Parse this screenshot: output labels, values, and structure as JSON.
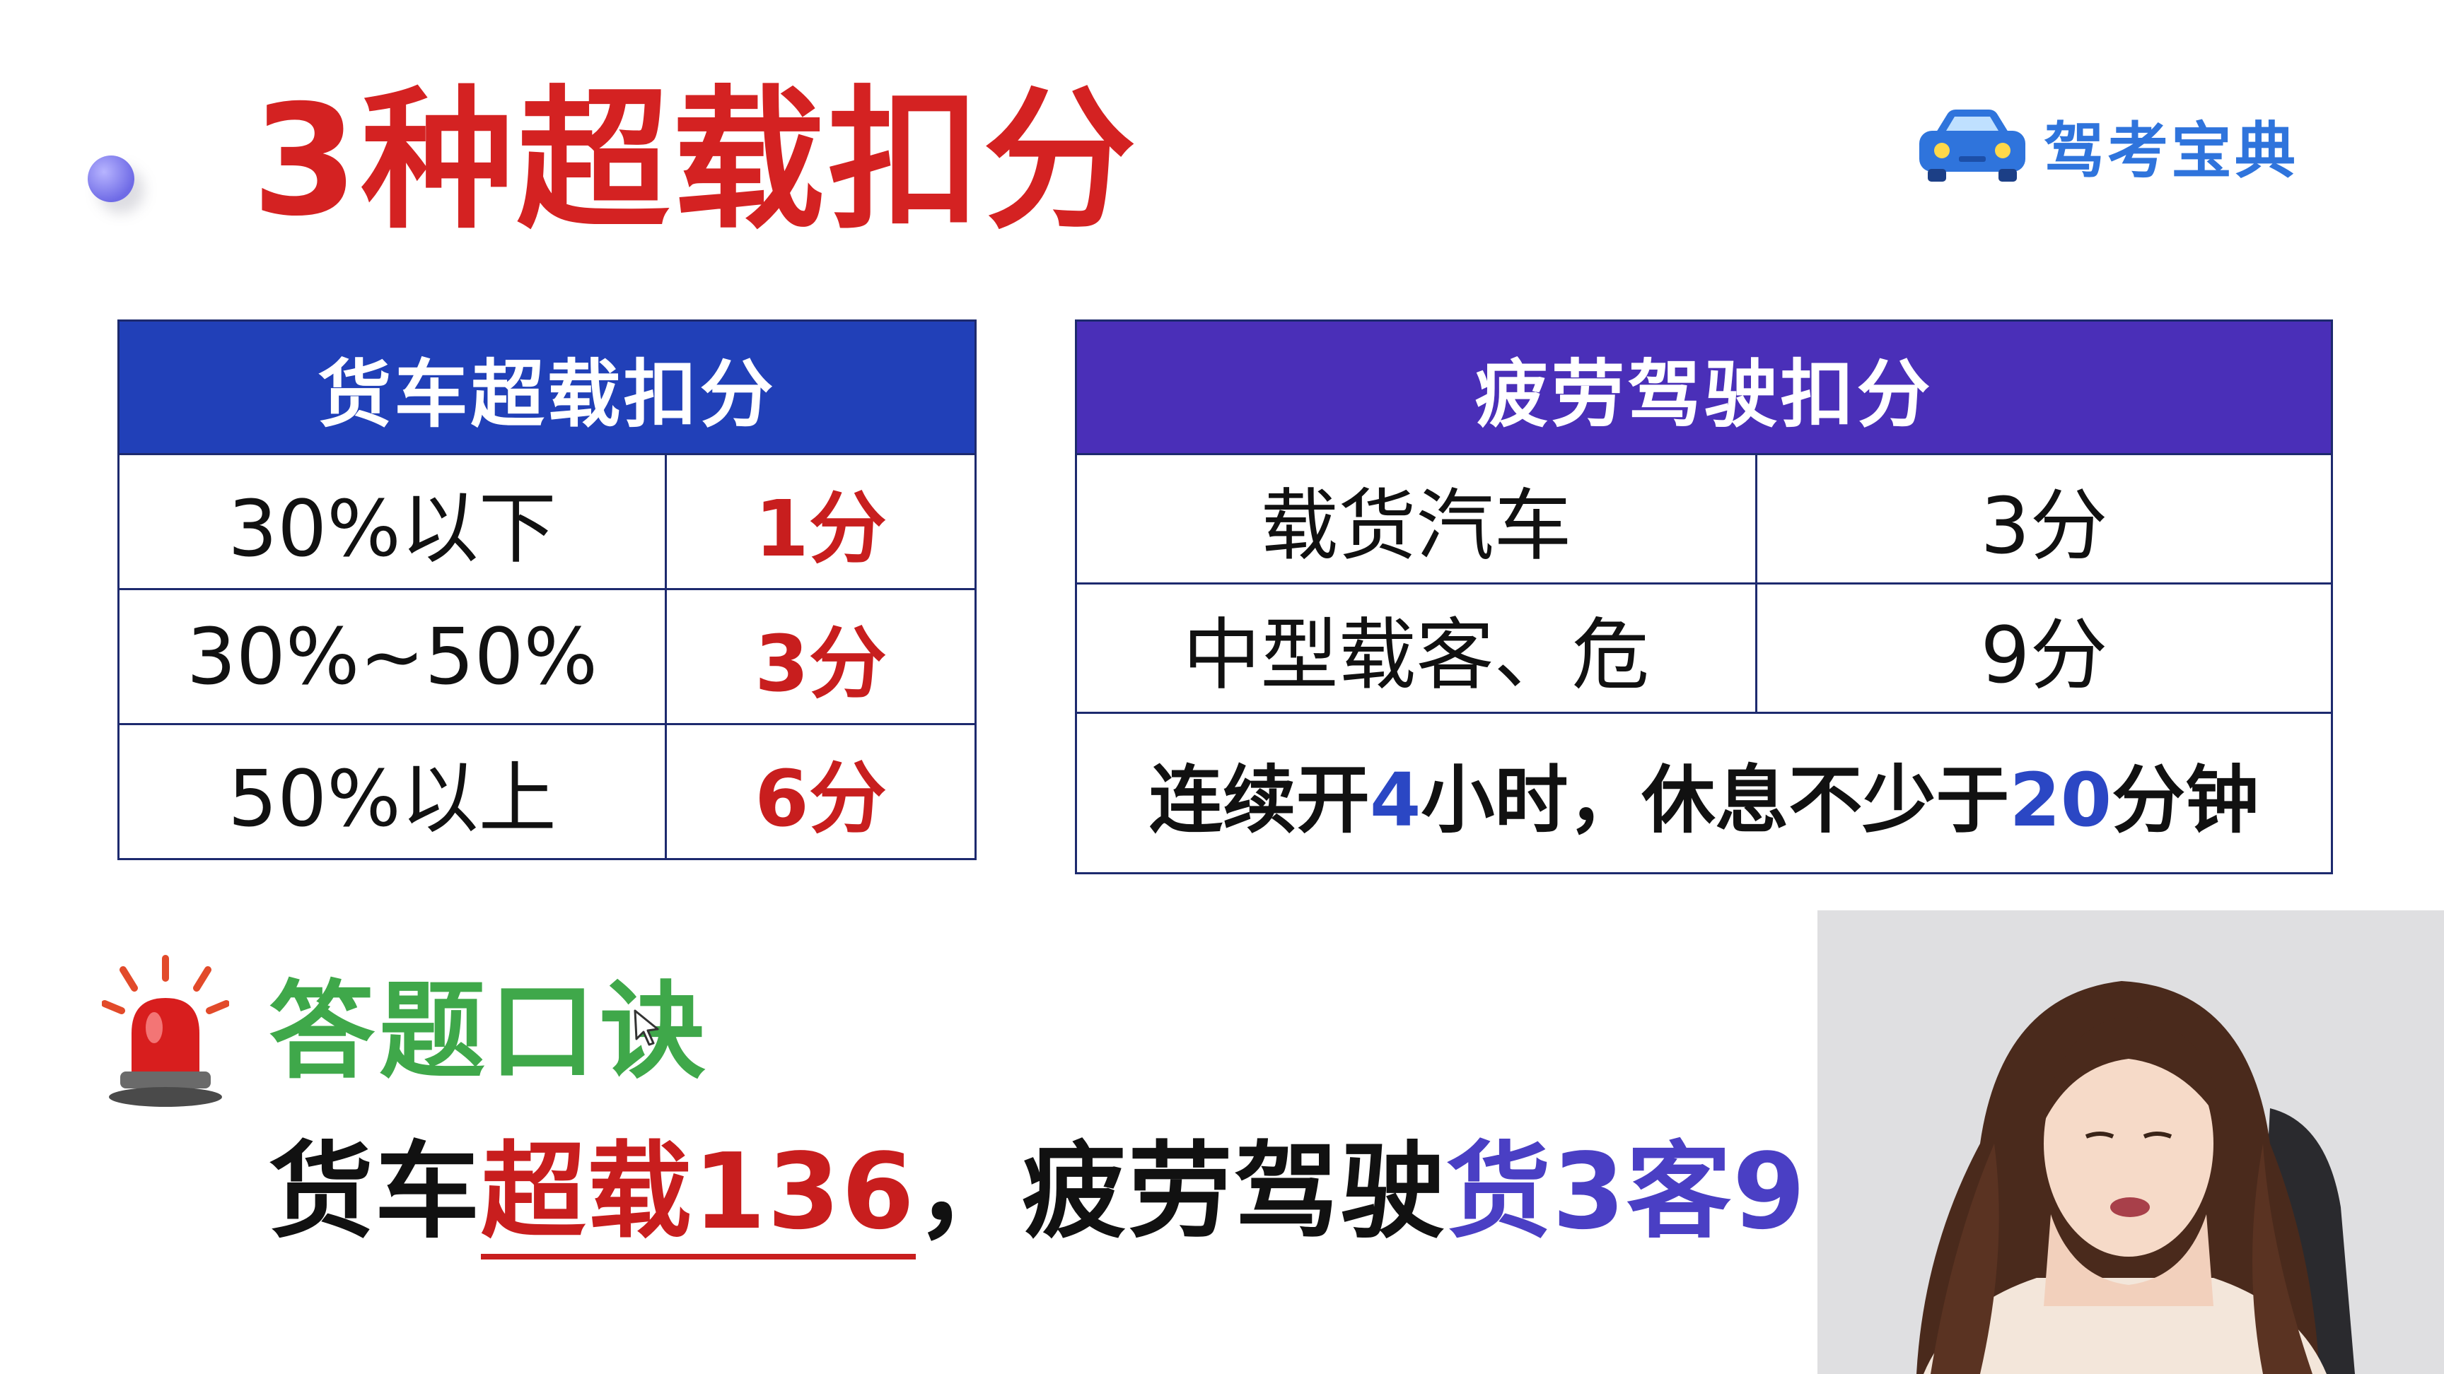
{
  "slide": {
    "title": "3种超载扣分",
    "logo_text": "驾考宝典",
    "logo_icon": "car-icon"
  },
  "table_left": {
    "header": "货车超载扣分",
    "rows": [
      {
        "range": "30%以下",
        "points": "1分"
      },
      {
        "range": "30%~50%",
        "points": "3分"
      },
      {
        "range": "50%以上",
        "points": "6分"
      }
    ]
  },
  "table_right": {
    "header": "疲劳驾驶扣分",
    "rows": [
      {
        "vehicle": "载货汽车",
        "points": "3分"
      },
      {
        "vehicle": "中型载客、危",
        "points": "9分"
      }
    ],
    "rest_rule": {
      "part1": "连续开",
      "hours": "4",
      "part2": "小时，休息不少于",
      "minutes": "20",
      "part3": "分钟"
    }
  },
  "mnemonic": {
    "title": "答题口诀",
    "icon": "alarm-light-icon",
    "line_part1": "货车",
    "line_red": "超载136",
    "line_part2": "，疲劳驾驶",
    "line_purple": "货3客9"
  },
  "colors": {
    "title_red": "#d42222",
    "left_header_blue": "#2140b8",
    "right_header_purple": "#4a2fb8",
    "mnemonic_green": "#3fa84a",
    "logo_blue": "#2f74dc"
  }
}
